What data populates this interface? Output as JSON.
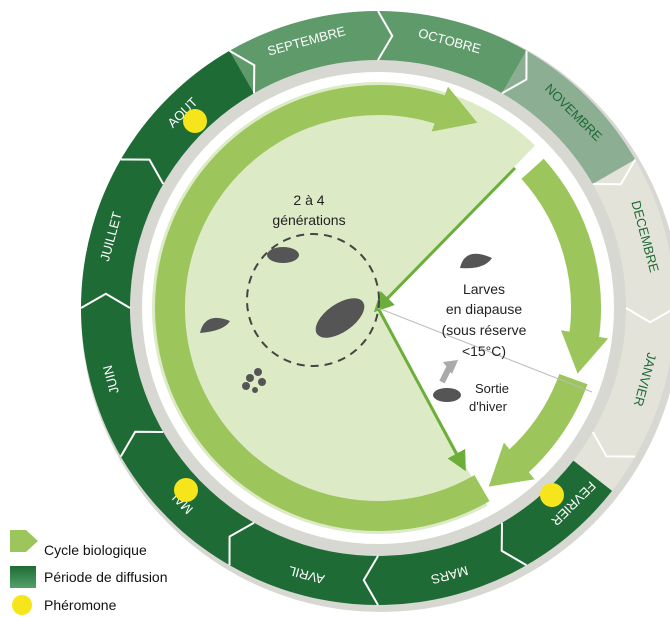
{
  "months": [
    "SEPTEMBRE",
    "OCTOBRE",
    "NOVEMBRE",
    "DECEMBRE",
    "JANVIER",
    "FEVRIER",
    "MARS",
    "AVRIL",
    "MAI",
    "JUIN",
    "JUILLET",
    "AOUT"
  ],
  "cycle": {
    "generations": [
      "2 à 4",
      "générations"
    ],
    "diapause": [
      "Larves",
      "en diapause",
      "(sous réserve",
      "<15°C)"
    ],
    "exit": [
      "Sortie",
      "d'hiver"
    ]
  },
  "legend": [
    "Cycle biologique",
    "Période de diffusion",
    "Phéromone"
  ]
}
